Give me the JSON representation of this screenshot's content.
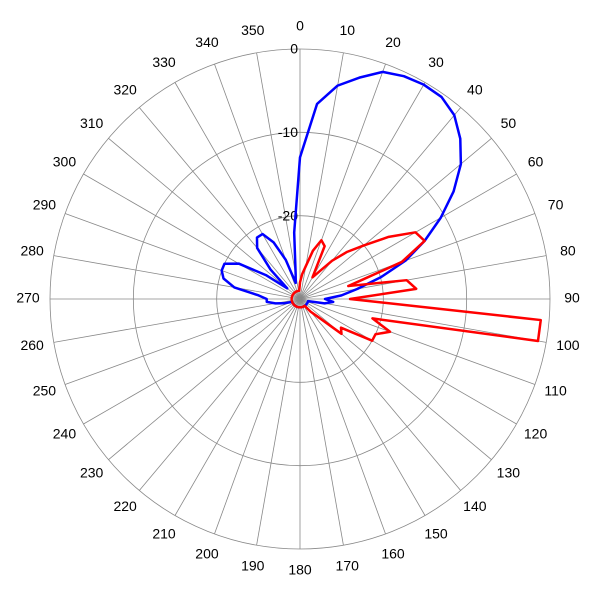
{
  "chart_data": {
    "type": "polar",
    "theta": [
      0,
      5,
      10,
      15,
      20,
      25,
      30,
      35,
      40,
      45,
      50,
      55,
      60,
      65,
      70,
      75,
      80,
      85,
      90,
      95,
      100,
      105,
      110,
      115,
      120,
      125,
      130,
      135,
      140,
      145,
      150,
      155,
      160,
      165,
      170,
      175,
      180,
      185,
      190,
      195,
      200,
      205,
      210,
      215,
      220,
      225,
      230,
      235,
      240,
      245,
      250,
      255,
      260,
      265,
      270,
      275,
      280,
      285,
      290,
      295,
      300,
      305,
      310,
      315,
      320,
      325,
      330,
      335,
      340,
      345,
      350,
      355
    ],
    "series": [
      {
        "color": "#0000ff",
        "values": [
          -13,
          -6.5,
          -4,
          -2.5,
          -1,
          -0.5,
          -0.3,
          -0.4,
          -1.2,
          -2.8,
          -4.8,
          -7.5,
          -10.5,
          -13.5,
          -16.5,
          -20,
          -23,
          -25,
          -27,
          -26,
          -27,
          -29,
          -29,
          -29,
          -29,
          -29,
          -29,
          -29,
          -29,
          -29,
          -29,
          -29,
          -29,
          -29,
          -29,
          -29,
          -29,
          -29,
          -29,
          -29,
          -29,
          -29,
          -29,
          -29,
          -29,
          -29,
          -29,
          -29,
          -29,
          -29,
          -29,
          -28,
          -27,
          -26,
          -26,
          -25,
          -22,
          -20.5,
          -20,
          -20,
          -21.5,
          -25,
          -28,
          -25,
          -22,
          -21,
          -21,
          -22.5,
          -25,
          -28,
          -27,
          -22
        ]
      },
      {
        "color": "#ff0000",
        "values": [
          -28,
          -27,
          -26,
          -24,
          -22.5,
          -23,
          -27,
          -26,
          -24,
          -22,
          -20,
          -17,
          -14,
          -13.5,
          -17,
          -24,
          -17,
          -16,
          -24,
          -1,
          -1,
          -21,
          -18.5,
          -20,
          -20,
          -24,
          -23.5,
          -27,
          -28,
          -29,
          -29,
          -29,
          -29,
          -29,
          -29,
          -29,
          -29,
          -29,
          -29,
          -29,
          -29,
          -29,
          -29,
          -29,
          -29,
          -29,
          -29,
          -29,
          -29,
          -29,
          -29,
          -29,
          -29,
          -29,
          -29,
          -29,
          -29,
          -29,
          -29,
          -29,
          -29,
          -29,
          -29,
          -29,
          -29,
          -29,
          -29,
          -29,
          -29,
          -29,
          -29,
          -29
        ]
      }
    ],
    "rlim": [
      -30,
      0
    ],
    "rticks": [
      0,
      -10,
      -20
    ],
    "thetaticks": [
      0,
      10,
      20,
      30,
      40,
      50,
      60,
      70,
      80,
      90,
      100,
      110,
      120,
      130,
      140,
      150,
      160,
      170,
      180,
      190,
      200,
      210,
      220,
      230,
      240,
      250,
      260,
      270,
      280,
      290,
      300,
      310,
      320,
      330,
      340,
      350
    ],
    "grid": true
  }
}
